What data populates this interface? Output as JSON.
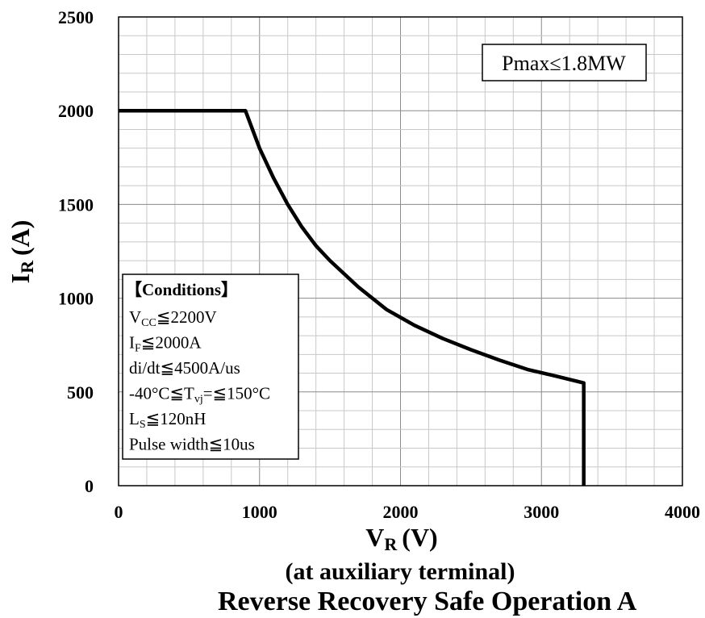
{
  "chart_data": {
    "type": "line",
    "title": "Reverse Recovery Safe Operation A",
    "subtitle": "(at auxiliary terminal)",
    "xlabel": {
      "main": "V",
      "sub": "R",
      "unit": "(V)"
    },
    "ylabel": {
      "main": "I",
      "sub": "R",
      "unit": "(A)"
    },
    "xlim": [
      0,
      4000
    ],
    "ylim": [
      0,
      2500
    ],
    "xticks": [
      0,
      1000,
      2000,
      3000,
      4000
    ],
    "yticks": [
      0,
      500,
      1000,
      1500,
      2000,
      2500
    ],
    "xtick_labels": [
      "0",
      "1000",
      "2000",
      "3000",
      "4000"
    ],
    "ytick_labels": [
      "0",
      "500",
      "1000",
      "1500",
      "2000",
      "2500"
    ],
    "grid": true,
    "minor_x_step": 200,
    "minor_y_step": 100,
    "series": [
      {
        "color": "#000000",
        "x": [
          0,
          900,
          1000,
          1100,
          1200,
          1300,
          1400,
          1500,
          1700,
          1900,
          2100,
          2300,
          2500,
          2700,
          2900,
          3100,
          3300,
          3300
        ],
        "y": [
          2000,
          2000,
          1800,
          1640,
          1500,
          1380,
          1280,
          1200,
          1060,
          940,
          855,
          785,
          725,
          670,
          620,
          585,
          548,
          0
        ]
      }
    ],
    "annotations": {
      "pmax": "Pmax≤1.8MW",
      "conditions_title": "【Conditions】",
      "conditions": [
        {
          "main": "V",
          "sub": "CC",
          "rest": "≦2200V"
        },
        {
          "main": "I",
          "sub": "F",
          "rest": "≦2000A"
        },
        {
          "main": "di/dt≦4500A/us",
          "sub": "",
          "rest": ""
        },
        {
          "main": "-40°C≦T",
          "sub": "vj",
          "rest": "=≦150°C"
        },
        {
          "main": "L",
          "sub": "S",
          "rest": "≦120nH"
        },
        {
          "main": "Pulse width≦10us",
          "sub": "",
          "rest": ""
        }
      ]
    }
  }
}
